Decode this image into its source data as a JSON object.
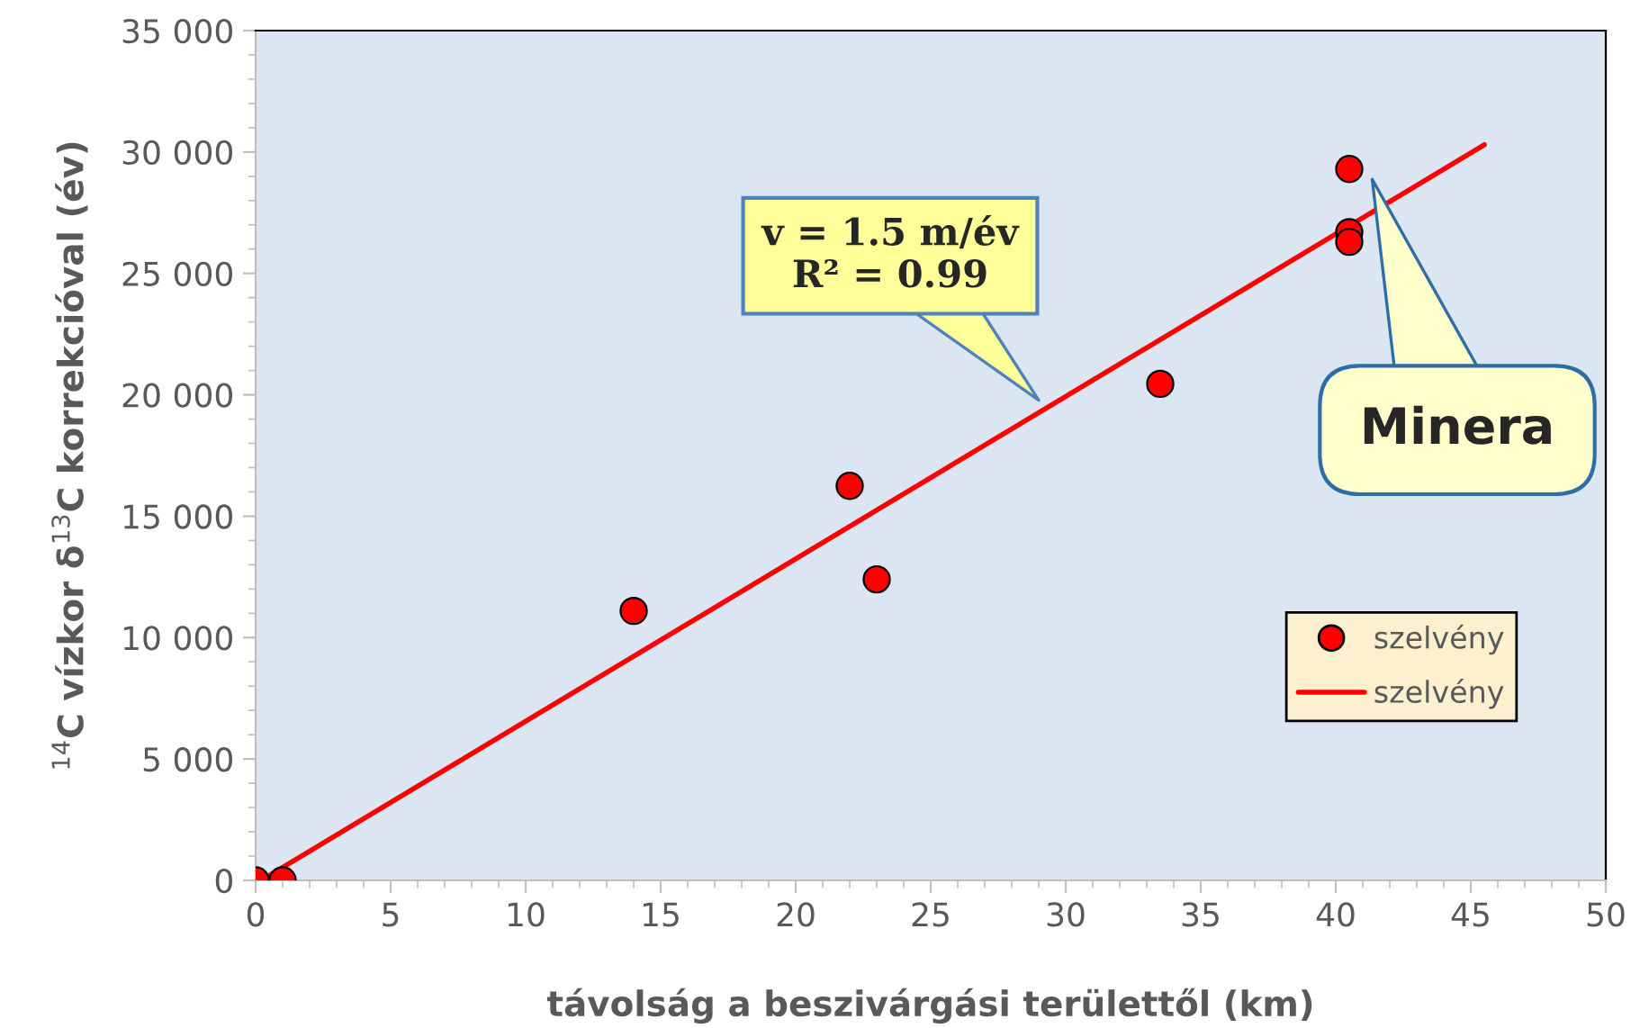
{
  "chart_data": {
    "type": "scatter",
    "xlabel": "távolság a beszivárgási területtől (km)",
    "ylabel": "$^{14}$C vízkor δ$^{13}$C korrekcióval (év)",
    "series": [
      {
        "name": "szelvény",
        "color": "#ff0000",
        "marker": "circle",
        "x": [
          0,
          1,
          14,
          22,
          23,
          33.5,
          40.5,
          40.5,
          40.5
        ],
        "values": [
          0,
          0,
          11100,
          16250,
          12400,
          20450,
          29300,
          26700,
          26300
        ]
      },
      {
        "name": "szelvény",
        "type": "line",
        "color": "#ff0000",
        "line_style": "solid",
        "x": [
          0.5,
          45.5
        ],
        "values": [
          200,
          30300
        ]
      }
    ],
    "xlim": [
      0,
      50
    ],
    "xticks": [
      0,
      5,
      10,
      15,
      20,
      25,
      30,
      35,
      40,
      45,
      50
    ],
    "ylim": [
      0,
      35000
    ],
    "yticks": [
      {
        "value": 0,
        "label": "0"
      },
      {
        "value": 5000,
        "label": "5 000"
      },
      {
        "value": 10000,
        "label": "10 000"
      },
      {
        "value": 15000,
        "label": "15 000"
      },
      {
        "value": 20000,
        "label": "20 000"
      },
      {
        "value": 25000,
        "label": "25 000"
      },
      {
        "value": 30000,
        "label": "30 000"
      },
      {
        "value": 35000,
        "label": "35 000"
      }
    ],
    "grid": false,
    "legend": "bottom right",
    "annotations": [
      "v = 1.5 m/év\nR² = 0.99",
      "Minera"
    ]
  }
}
